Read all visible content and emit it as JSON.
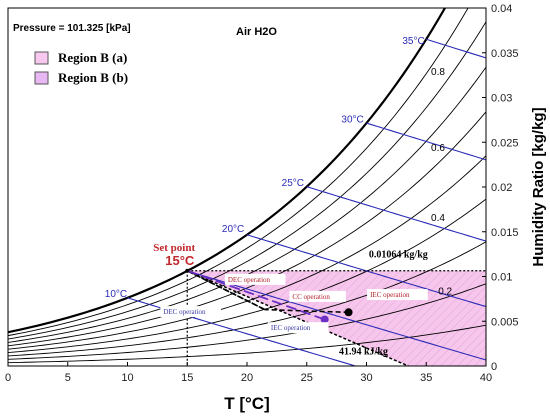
{
  "chart_data": {
    "type": "line",
    "chart_kind": "psychrometric",
    "header_left": "Pressure = 101.325 [kPa]",
    "header_center": "Air H2O",
    "xlabel": "T [°C]",
    "ylabel": "Humidity Ratio [kg/kg]",
    "xlim": [
      0,
      40
    ],
    "ylim": [
      0,
      0.04
    ],
    "x_ticks": [
      "0",
      "5",
      "10",
      "15",
      "20",
      "25",
      "30",
      "35",
      "40"
    ],
    "y_ticks": [
      "0",
      "0.005",
      "0.01",
      "0.015",
      "0.02",
      "0.025",
      "0.03",
      "0.035",
      "0.04"
    ],
    "pressure_kpa": 101.325,
    "relative_humidity_lines": [
      0.1,
      0.2,
      0.3,
      0.4,
      0.5,
      0.6,
      0.7,
      0.8,
      0.9,
      1.0
    ],
    "rh_labels": [
      {
        "text": "0.8",
        "t": 35.4,
        "w": 0.0325
      },
      {
        "text": "0.6",
        "t": 35.4,
        "w": 0.024
      },
      {
        "text": "0.4",
        "t": 35.4,
        "w": 0.0162
      },
      {
        "text": "0.2",
        "t": 36.0,
        "w": 0.008
      }
    ],
    "wet_bulb_lines": [
      10,
      15,
      20,
      25,
      30,
      35
    ],
    "wet_bulb_labels": [
      {
        "text": "10°C",
        "t": 8.1,
        "w": 0.0077
      },
      {
        "text": "20°C",
        "t": 17.9,
        "w": 0.015
      },
      {
        "text": "25°C",
        "t": 22.9,
        "w": 0.0201
      },
      {
        "text": "30°C",
        "t": 27.9,
        "w": 0.0272
      },
      {
        "text": "35°C",
        "t": 33.0,
        "w": 0.036
      }
    ],
    "legend": [
      {
        "label": "Region B (a)",
        "color": "#f7c9ee"
      },
      {
        "label": "Region B (b)",
        "color": "#e8b8f2"
      }
    ],
    "region_polygon": [
      [
        15,
        0.01064
      ],
      [
        40,
        0.01064
      ],
      [
        40,
        0
      ],
      [
        33.5,
        0
      ]
    ],
    "set_point": {
      "label": "Set point",
      "value_label": "15°C",
      "t": 15,
      "w": 0.01064
    },
    "humidity_line": {
      "w": 0.01064,
      "label": "0.01064 kg/kg"
    },
    "enthalpy_label": "41.94 kJ/kg",
    "points": [
      {
        "name": "state-a",
        "t": 28.5,
        "w": 0.006,
        "color": "#000000"
      },
      {
        "name": "state-b",
        "t": 26.5,
        "w": 0.0052,
        "color": "#6a2fc4"
      }
    ],
    "processes": [
      {
        "label": "DEC operation",
        "path": [
          [
            15,
            0.01064
          ],
          [
            21.5,
            0.0063
          ]
        ],
        "color": "#000000",
        "dash": "5,3"
      },
      {
        "label": "CC operation",
        "path": [
          [
            28.5,
            0.006
          ],
          [
            21.5,
            0.0063
          ]
        ],
        "color": "#000000",
        "dash": "5,3"
      },
      {
        "label": "IEC operation",
        "path": [
          [
            21.5,
            0.0063
          ],
          [
            15,
            0.01064
          ]
        ],
        "color": "#000000",
        "dash": "5,3"
      },
      {
        "label": "DEC operation",
        "path": [
          [
            15,
            0.01064
          ],
          [
            26.5,
            0.0052
          ]
        ],
        "color": "#6a2fc4",
        "dash": "10,5"
      },
      {
        "label": "IEC operation",
        "path": [
          [
            26.5,
            0.0052
          ],
          [
            15,
            0.01064
          ]
        ],
        "color": "#6a2fc4",
        "dash": "10,5"
      }
    ],
    "process_labels": [
      {
        "text": "DEC operation",
        "t": 18.4,
        "w": 0.0094
      },
      {
        "text": "CC operation",
        "t": 23.8,
        "w": 0.0075
      },
      {
        "text": "IEC operation",
        "t": 30.3,
        "w": 0.0077
      },
      {
        "text": "DEC operation",
        "t": 13.0,
        "w": 0.0058
      },
      {
        "text": "IEC operation",
        "t": 22.0,
        "w": 0.004
      }
    ],
    "grid": false,
    "legend_position": "top-left"
  }
}
